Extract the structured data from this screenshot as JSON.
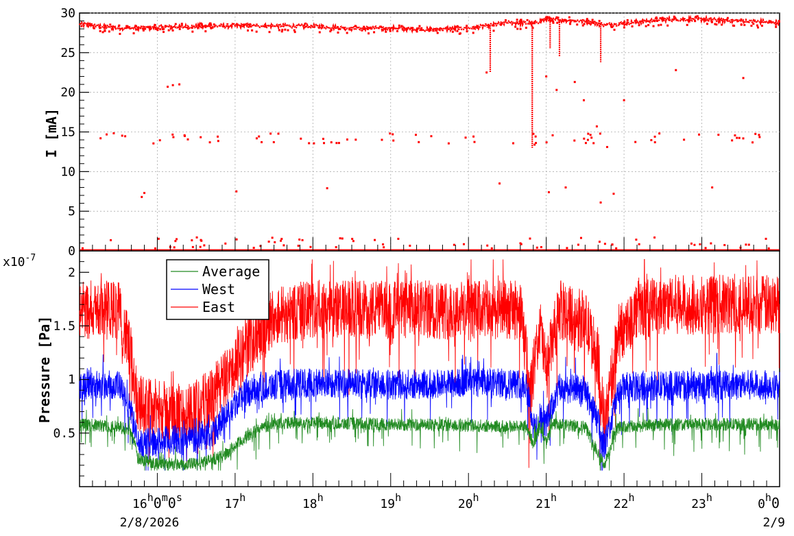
{
  "chart_data": [
    {
      "type": "scatter",
      "ylabel": "I [mA]",
      "xlim": [
        "15:00",
        "24:00"
      ],
      "ylim": [
        0,
        30
      ],
      "grid": true,
      "y_ticks": [
        "0",
        "5",
        "10",
        "15",
        "20",
        "25",
        "30"
      ],
      "series": [
        {
          "color": "#ff0000",
          "main_band": [
            {
              "t": "15:00",
              "i": 28.6
            },
            {
              "t": "15:30",
              "i": 28.1
            },
            {
              "t": "16:00",
              "i": 28.2
            },
            {
              "t": "16:30",
              "i": 28.3
            },
            {
              "t": "17:00",
              "i": 28.4
            },
            {
              "t": "17:30",
              "i": 28.4
            },
            {
              "t": "18:00",
              "i": 28.3
            },
            {
              "t": "18:30",
              "i": 28.1
            },
            {
              "t": "19:00",
              "i": 28.1
            },
            {
              "t": "19:30",
              "i": 27.9
            },
            {
              "t": "20:00",
              "i": 28.1
            },
            {
              "t": "20:15",
              "i": 28.4
            },
            {
              "t": "20:30",
              "i": 28.8
            },
            {
              "t": "20:50",
              "i": 28.7
            },
            {
              "t": "21:00",
              "i": 29.2
            },
            {
              "t": "21:30",
              "i": 29.0
            },
            {
              "t": "21:45",
              "i": 28.5
            },
            {
              "t": "22:00",
              "i": 28.7
            },
            {
              "t": "22:30",
              "i": 29.2
            },
            {
              "t": "23:00",
              "i": 29.2
            },
            {
              "t": "23:30",
              "i": 29.0
            },
            {
              "t": "24:00",
              "i": 28.8
            }
          ],
          "low_band_value": 0.1,
          "mid_band_value": 14.2,
          "stray_points": [
            {
              "t": "15:48",
              "i": 6.8
            },
            {
              "t": "15:50",
              "i": 7.3
            },
            {
              "t": "16:08",
              "i": 20.7
            },
            {
              "t": "16:12",
              "i": 20.9
            },
            {
              "t": "16:17",
              "i": 21.0
            },
            {
              "t": "17:01",
              "i": 7.5
            },
            {
              "t": "18:11",
              "i": 7.9
            },
            {
              "t": "20:14",
              "i": 22.5
            },
            {
              "t": "20:24",
              "i": 8.5
            },
            {
              "t": "20:51",
              "i": 13.4
            },
            {
              "t": "21:00",
              "i": 22.0
            },
            {
              "t": "21:02",
              "i": 7.4
            },
            {
              "t": "21:08",
              "i": 20.3
            },
            {
              "t": "21:15",
              "i": 8.0
            },
            {
              "t": "21:22",
              "i": 21.3
            },
            {
              "t": "21:29",
              "i": 19.0
            },
            {
              "t": "21:39",
              "i": 15.7
            },
            {
              "t": "21:42",
              "i": 6.1
            },
            {
              "t": "21:47",
              "i": 13.1
            },
            {
              "t": "21:52",
              "i": 7.2
            },
            {
              "t": "22:00",
              "i": 19.0
            },
            {
              "t": "22:40",
              "i": 22.8
            },
            {
              "t": "23:08",
              "i": 8.0
            },
            {
              "t": "23:32",
              "i": 21.8
            }
          ]
        }
      ]
    },
    {
      "type": "line",
      "ylabel": "Pressure [Pa]",
      "y_exponent": "x10",
      "y_exponent_power": "-7",
      "xlim": [
        "15:00",
        "24:00"
      ],
      "ylim": [
        0,
        2.2
      ],
      "grid": false,
      "y_ticks": [
        "0.5",
        "1",
        "1.5",
        "2"
      ],
      "legend_position": "top-left",
      "series": [
        {
          "name": "Average",
          "color": "#228b22",
          "base": [
            {
              "t": "15:00",
              "v": 0.58
            },
            {
              "t": "15:30",
              "v": 0.56
            },
            {
              "t": "15:40",
              "v": 0.52
            },
            {
              "t": "15:45",
              "v": 0.26
            },
            {
              "t": "16:00",
              "v": 0.22
            },
            {
              "t": "16:30",
              "v": 0.21
            },
            {
              "t": "16:50",
              "v": 0.28
            },
            {
              "t": "17:00",
              "v": 0.38
            },
            {
              "t": "17:15",
              "v": 0.52
            },
            {
              "t": "17:30",
              "v": 0.59
            },
            {
              "t": "18:00",
              "v": 0.6
            },
            {
              "t": "19:00",
              "v": 0.58
            },
            {
              "t": "20:00",
              "v": 0.57
            },
            {
              "t": "20:45",
              "v": 0.56
            },
            {
              "t": "20:50",
              "v": 0.4
            },
            {
              "t": "20:55",
              "v": 0.55
            },
            {
              "t": "21:00",
              "v": 0.4
            },
            {
              "t": "21:05",
              "v": 0.58
            },
            {
              "t": "21:30",
              "v": 0.56
            },
            {
              "t": "21:45",
              "v": 0.2
            },
            {
              "t": "21:55",
              "v": 0.55
            },
            {
              "t": "22:30",
              "v": 0.58
            },
            {
              "t": "23:00",
              "v": 0.58
            },
            {
              "t": "24:00",
              "v": 0.58
            }
          ]
        },
        {
          "name": "West",
          "color": "#0000ff",
          "base": [
            {
              "t": "15:00",
              "v": 0.95
            },
            {
              "t": "15:30",
              "v": 0.95
            },
            {
              "t": "15:40",
              "v": 0.7
            },
            {
              "t": "15:45",
              "v": 0.4
            },
            {
              "t": "16:00",
              "v": 0.42
            },
            {
              "t": "16:30",
              "v": 0.45
            },
            {
              "t": "16:45",
              "v": 0.52
            },
            {
              "t": "17:00",
              "v": 0.8
            },
            {
              "t": "17:15",
              "v": 0.92
            },
            {
              "t": "17:30",
              "v": 0.95
            },
            {
              "t": "18:00",
              "v": 0.97
            },
            {
              "t": "19:00",
              "v": 0.95
            },
            {
              "t": "20:00",
              "v": 0.97
            },
            {
              "t": "20:45",
              "v": 0.96
            },
            {
              "t": "20:50",
              "v": 0.55
            },
            {
              "t": "21:00",
              "v": 0.6
            },
            {
              "t": "21:10",
              "v": 0.92
            },
            {
              "t": "21:30",
              "v": 0.9
            },
            {
              "t": "21:40",
              "v": 0.6
            },
            {
              "t": "21:45",
              "v": 0.38
            },
            {
              "t": "21:55",
              "v": 0.85
            },
            {
              "t": "22:00",
              "v": 0.93
            },
            {
              "t": "23:00",
              "v": 0.95
            },
            {
              "t": "24:00",
              "v": 0.95
            }
          ]
        },
        {
          "name": "East",
          "color": "#ff0000",
          "base": [
            {
              "t": "15:00",
              "v": 1.65
            },
            {
              "t": "15:30",
              "v": 1.65
            },
            {
              "t": "15:40",
              "v": 1.2
            },
            {
              "t": "15:45",
              "v": 0.78
            },
            {
              "t": "16:00",
              "v": 0.72
            },
            {
              "t": "16:20",
              "v": 0.68
            },
            {
              "t": "16:40",
              "v": 0.8
            },
            {
              "t": "16:55",
              "v": 1.05
            },
            {
              "t": "17:15",
              "v": 1.4
            },
            {
              "t": "17:30",
              "v": 1.6
            },
            {
              "t": "18:00",
              "v": 1.65
            },
            {
              "t": "19:00",
              "v": 1.65
            },
            {
              "t": "20:00",
              "v": 1.65
            },
            {
              "t": "20:40",
              "v": 1.65
            },
            {
              "t": "20:48",
              "v": 0.9
            },
            {
              "t": "20:55",
              "v": 1.5
            },
            {
              "t": "21:00",
              "v": 1.1
            },
            {
              "t": "21:10",
              "v": 1.65
            },
            {
              "t": "21:30",
              "v": 1.55
            },
            {
              "t": "21:40",
              "v": 1.2
            },
            {
              "t": "21:45",
              "v": 0.55
            },
            {
              "t": "21:55",
              "v": 1.4
            },
            {
              "t": "22:10",
              "v": 1.65
            },
            {
              "t": "22:30",
              "v": 1.7
            },
            {
              "t": "23:00",
              "v": 1.7
            },
            {
              "t": "24:00",
              "v": 1.7
            }
          ]
        }
      ]
    }
  ],
  "x_axis": {
    "tick_labels": [
      {
        "t": "16:00",
        "main": "16",
        "sup": [
          "h",
          "0",
          "m",
          "0",
          "s"
        ]
      },
      {
        "t": "17:00",
        "main": "17",
        "sup": [
          "h"
        ]
      },
      {
        "t": "18:00",
        "main": "18",
        "sup": [
          "h"
        ]
      },
      {
        "t": "19:00",
        "main": "19",
        "sup": [
          "h"
        ]
      },
      {
        "t": "20:00",
        "main": "20",
        "sup": [
          "h"
        ]
      },
      {
        "t": "21:00",
        "main": "21",
        "sup": [
          "h"
        ]
      },
      {
        "t": "22:00",
        "main": "22",
        "sup": [
          "h"
        ]
      },
      {
        "t": "23:00",
        "main": "23",
        "sup": [
          "h"
        ]
      },
      {
        "t": "24:00",
        "main": "0",
        "sup": [
          "h",
          "0"
        ]
      }
    ],
    "start_date": "2/8/2026",
    "end_date": "2/9"
  }
}
